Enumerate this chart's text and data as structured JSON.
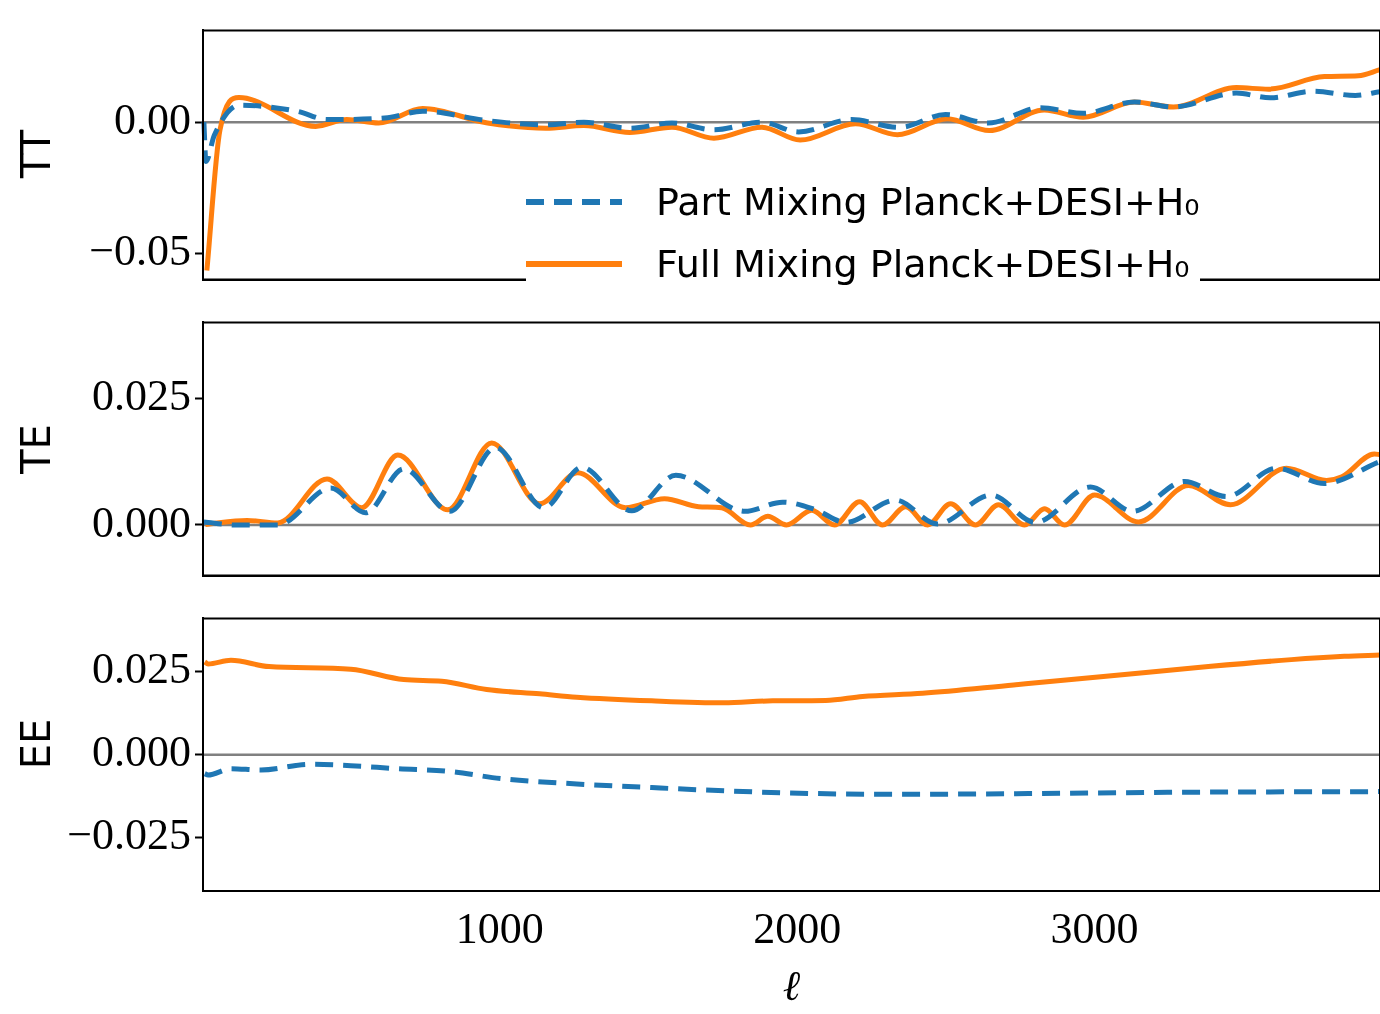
{
  "chart_data": [
    {
      "type": "line",
      "ylabel": "TT",
      "xlim": [
        2,
        3960
      ],
      "xticks": [
        1000,
        2000,
        3000
      ],
      "ylim": [
        -0.06,
        0.035
      ],
      "yticks": [
        {
          "value": -0.05,
          "label": "−0.05"
        },
        {
          "value": 0,
          "label": "0.00"
        }
      ],
      "tick_labels": "y",
      "legend": "bottom right",
      "ref_lines": [
        {
          "axis": "y",
          "value": 0,
          "color": "#808080"
        }
      ],
      "series": [
        {
          "name": "Part Mixing Planck+DESI+H₀",
          "color": "#1f77b4",
          "line_style": "dashed",
          "x": [
            5,
            12,
            40,
            123,
            318,
            419,
            613,
            741,
            959,
            1155,
            1283,
            1437,
            1579,
            1720,
            1881,
            2005,
            2183,
            2343,
            2499,
            2643,
            2818,
            2962,
            3134,
            3265,
            3477,
            3591,
            3736,
            3877,
            3960
          ],
          "values": [
            0,
            -0.015,
            -0.005,
            0.0065,
            0.0042,
            0.001,
            0.0016,
            0.0042,
            0.0006,
            -0.001,
            0,
            -0.0023,
            -0.0003,
            -0.0029,
            0,
            -0.0037,
            0.001,
            -0.002,
            0.0029,
            -0.0003,
            0.0055,
            0.0034,
            0.0077,
            0.0058,
            0.0111,
            0.0093,
            0.0118,
            0.0102,
            0.0116
          ]
        },
        {
          "name": "Full Mixing Planck+DESI+H₀",
          "color": "#ff7f0e",
          "line_style": "solid",
          "x": [
            15,
            59,
            123,
            381,
            486,
            593,
            741,
            959,
            1155,
            1283,
            1437,
            1579,
            1720,
            1881,
            2010,
            2196,
            2337,
            2505,
            2646,
            2831,
            2962,
            3134,
            3265,
            3477,
            3585,
            3773,
            3887,
            3960
          ],
          "values": [
            -0.0565,
            -0.003,
            0.0094,
            -0.0016,
            0.001,
            -0.0003,
            0.0052,
            -0.0003,
            -0.0023,
            -0.0013,
            -0.0039,
            -0.0019,
            -0.0061,
            -0.0019,
            -0.0068,
            -0.0006,
            -0.0048,
            0.0013,
            -0.0032,
            0.0047,
            0.0019,
            0.0077,
            0.0058,
            0.0132,
            0.0126,
            0.0174,
            0.0177,
            0.02
          ]
        }
      ]
    },
    {
      "type": "line",
      "ylabel": "TE",
      "xlim": [
        2,
        3960
      ],
      "xticks": [
        1000,
        2000,
        3000
      ],
      "ylim": [
        -0.01,
        0.04
      ],
      "yticks": [
        {
          "value": 0,
          "label": "0.000"
        },
        {
          "value": 0.025,
          "label": "0.025"
        }
      ],
      "tick_labels": "y",
      "ref_lines": [
        {
          "axis": "y",
          "value": 0,
          "color": "#808080"
        }
      ],
      "series": [
        {
          "color": "#1f77b4",
          "line_style": "dashed",
          "x": [
            5,
            110,
            253,
            432,
            549,
            677,
            832,
            986,
            1148,
            1276,
            1444,
            1592,
            1824,
            1951,
            2062,
            2163,
            2331,
            2472,
            2653,
            2801,
            2986,
            3128,
            3303,
            3444,
            3612,
            3773,
            3955
          ],
          "values": [
            0.0006,
            0,
            0,
            0.0073,
            0.0024,
            0.0111,
            0.0027,
            0.0153,
            0.0034,
            0.0114,
            0.0028,
            0.0098,
            0.0027,
            0.0045,
            0.003,
            0.0005,
            0.0049,
            0.0002,
            0.0059,
            0.0005,
            0.0075,
            0.0027,
            0.0086,
            0.0056,
            0.0112,
            0.0082,
            0.0124
          ]
        },
        {
          "color": "#ff7f0e",
          "line_style": "solid",
          "x": [
            10,
            150,
            253,
            419,
            536,
            657,
            825,
            973,
            1134,
            1262,
            1423,
            1554,
            1669,
            1746,
            1843,
            1901,
            1964,
            2049,
            2126,
            2210,
            2287,
            2365,
            2439,
            2516,
            2600,
            2677,
            2765,
            2832,
            2899,
            3000,
            3148,
            3316,
            3457,
            3645,
            3780,
            3832,
            3941,
            3960
          ],
          "values": [
            0.0001,
            0.0009,
            0.0004,
            0.0091,
            0.0034,
            0.0138,
            0.003,
            0.0162,
            0.0042,
            0.0103,
            0.0034,
            0.0052,
            0.0036,
            0.0034,
            0,
            0.0017,
            0,
            0.0029,
            0,
            0.0046,
            0,
            0.0036,
            0,
            0.0042,
            0,
            0.004,
            0,
            0.0032,
            0,
            0.0059,
            0.0006,
            0.0078,
            0.004,
            0.0112,
            0.0088,
            0.0095,
            0.014,
            0.0139
          ]
        }
      ]
    },
    {
      "type": "line",
      "ylabel": "EE",
      "xlabel": "ℓ",
      "xlim": [
        2,
        3960
      ],
      "xticks": [
        1000,
        2000,
        3000
      ],
      "ylim": [
        -0.041,
        0.041
      ],
      "yticks": [
        {
          "value": -0.025,
          "label": "−0.025"
        },
        {
          "value": 0,
          "label": "0.000"
        },
        {
          "value": 0.025,
          "label": "0.025"
        }
      ],
      "ref_lines": [
        {
          "axis": "y",
          "value": 0,
          "color": "#808080"
        }
      ],
      "series": [
        {
          "color": "#1f77b4",
          "line_style": "dashed",
          "x": [
            8,
            19,
            96,
            197,
            361,
            499,
            654,
            828,
            1006,
            1259,
            1511,
            1766,
            2069,
            2398,
            2778,
            3282,
            3960
          ],
          "values": [
            -0.0057,
            -0.0061,
            -0.0042,
            -0.0046,
            -0.0029,
            -0.0033,
            -0.0042,
            -0.005,
            -0.0072,
            -0.0088,
            -0.0099,
            -0.0109,
            -0.0117,
            -0.0119,
            -0.0117,
            -0.0113,
            -0.0111
          ]
        },
        {
          "color": "#ff7f0e",
          "line_style": "solid",
          "x": [
            8,
            19,
            96,
            224,
            499,
            677,
            805,
            956,
            1134,
            1259,
            1511,
            1753,
            1918,
            2096,
            2220,
            2422,
            2728,
            3030,
            3383,
            3662,
            3840,
            3960
          ],
          "values": [
            0.0279,
            0.0273,
            0.0284,
            0.0265,
            0.0257,
            0.0226,
            0.0221,
            0.0196,
            0.0183,
            0.0173,
            0.0162,
            0.0156,
            0.0162,
            0.0163,
            0.0175,
            0.0185,
            0.021,
            0.0235,
            0.0265,
            0.0286,
            0.0296,
            0.03
          ]
        }
      ]
    }
  ]
}
